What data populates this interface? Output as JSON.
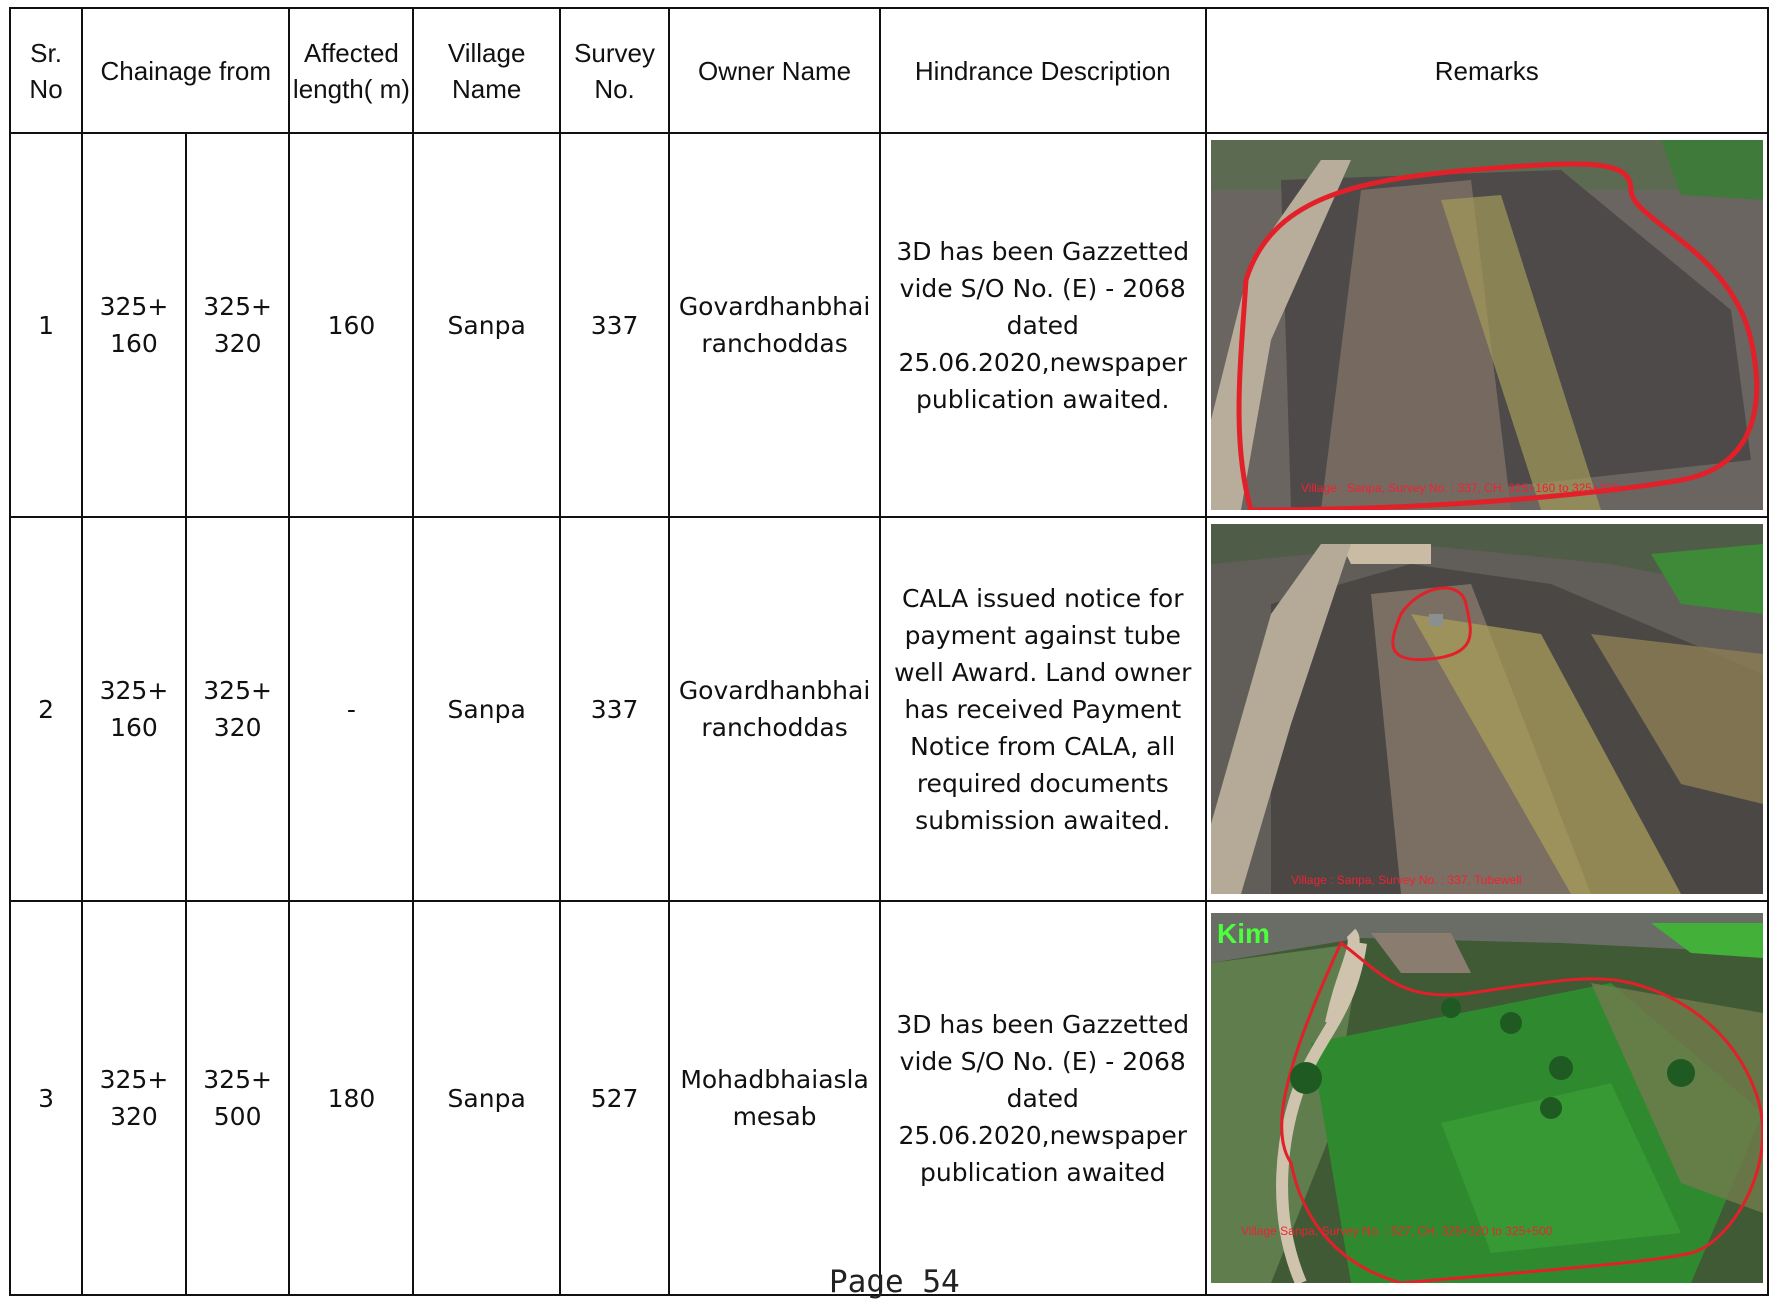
{
  "headers": {
    "sr_no": "Sr. No",
    "chainage_from": "Chainage from",
    "affected_length": "Affected length( m)",
    "village_name": "Village Name",
    "survey_no": "Survey No.",
    "owner_name": "Owner Name",
    "hindrance_description": "Hindrance  Description",
    "remarks": "Remarks"
  },
  "rows": [
    {
      "sr_no": "1",
      "chainage_start": "325+ 160",
      "chainage_end": "325+ 320",
      "affected_length": "160",
      "village": "Sanpa",
      "survey_no": "337",
      "owner": "Govardhanbhai ranchoddas",
      "description": "3D has been Gazzetted vide S/O No. (E) - 2068 dated 25.06.2020,newspaper publication awaited.",
      "photo_caption": "Village : Sanpa, Survey No. : 337, CH. 325+160 to 325+320"
    },
    {
      "sr_no": "2",
      "chainage_start": "325+ 160",
      "chainage_end": "325+ 320",
      "affected_length": "-",
      "village": "Sanpa",
      "survey_no": "337",
      "owner": "Govardhanbhai ranchoddas",
      "description": "CALA issued  notice for payment  against tube well Award. Land owner has received Payment Notice from CALA, all required documents submission awaited.",
      "photo_caption": "Village : Sanpa, Survey No. : 337, Tubewell"
    },
    {
      "sr_no": "3",
      "chainage_start": "325+ 320",
      "chainage_end": "325+ 500",
      "affected_length": "180",
      "village": "Sanpa",
      "survey_no": "527",
      "owner": "Mohadbhaiasla mesab",
      "description": "3D has been Gazzetted vide S/O No. (E) - 2068 dated 25.06.2020,newspaper publication awaited",
      "photo_caption": "Village Sanpa, Survey No. : 527, CH. 325+320 to 325+500",
      "photo_tag": "Kim"
    }
  ],
  "footer": {
    "page": "Page 54"
  },
  "colors": {
    "outline": "#e2202a",
    "field_green": "#2f8a2f",
    "soil": "#5e5a55"
  }
}
